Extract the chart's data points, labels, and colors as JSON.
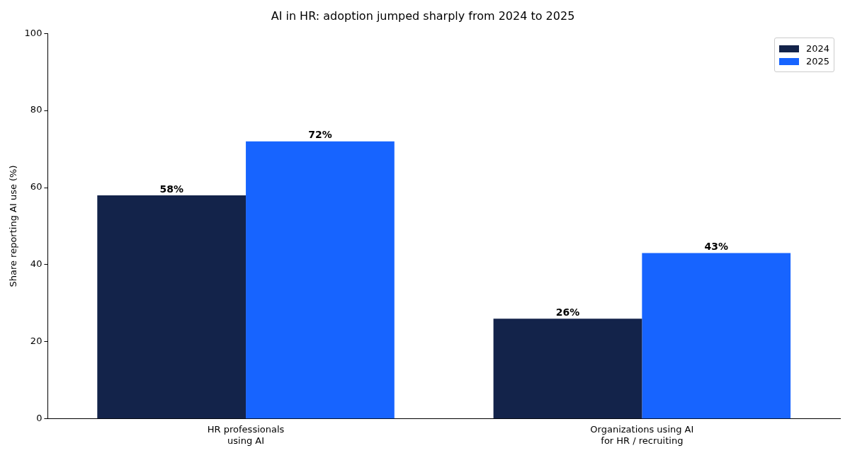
{
  "chart_data": {
    "type": "bar",
    "title": "AI in HR: adoption jumped sharply from 2024 to 2025",
    "ylabel": "Share reporting AI use (%)",
    "categories": [
      "HR professionals\nusing AI",
      "Organizations using AI\nfor HR / recruiting"
    ],
    "series": [
      {
        "name": "2024",
        "color": "#13234a",
        "values": [
          58,
          26
        ],
        "value_labels": [
          "58%",
          "26%"
        ]
      },
      {
        "name": "2025",
        "color": "#1764ff",
        "values": [
          72,
          43
        ],
        "value_labels": [
          "72%",
          "43%"
        ]
      }
    ],
    "ylim": [
      0,
      100
    ],
    "yticks": [
      0,
      20,
      40,
      60,
      80,
      100
    ],
    "grid": false,
    "legend": "top right"
  }
}
